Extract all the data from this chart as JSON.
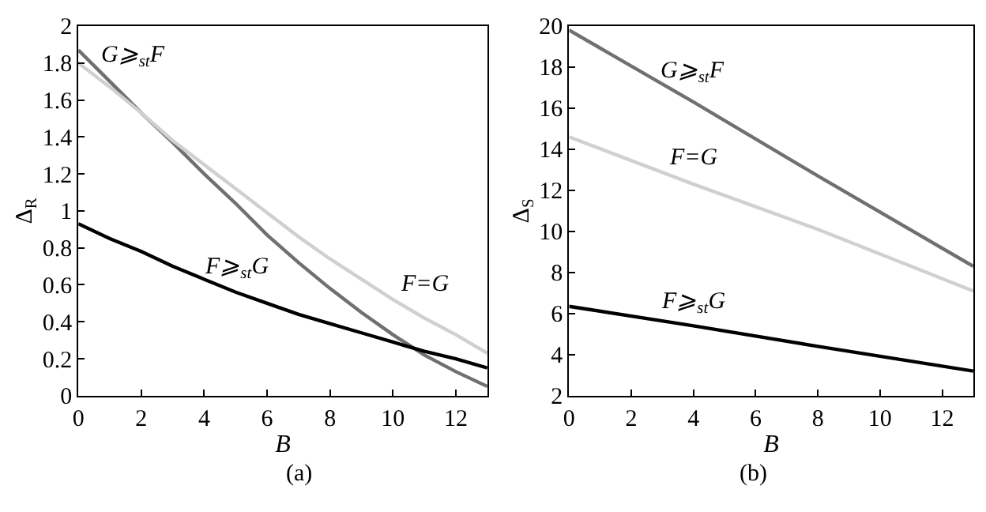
{
  "chart_data": [
    {
      "type": "line",
      "xlabel": "B",
      "ylabel": "Δ$_{R}$",
      "annotations": [
        "(a)"
      ],
      "xlim": [
        0,
        13
      ],
      "xticks": [
        0,
        2,
        4,
        6,
        8,
        10,
        12
      ],
      "ylim": [
        0,
        2
      ],
      "yticks": [
        0,
        0.2,
        0.4,
        0.6,
        0.8,
        1,
        1.2,
        1.4,
        1.6,
        1.8,
        2
      ],
      "legend": false,
      "marker": "none",
      "line_style": "solid",
      "series": [
        {
          "name": "G⩾$_{st}$F",
          "color": "#707070",
          "x": [
            0,
            1,
            2,
            3,
            4,
            5,
            6,
            7,
            8,
            9,
            10,
            11,
            12,
            13
          ],
          "values": [
            1.87,
            1.7,
            1.53,
            1.37,
            1.2,
            1.04,
            0.87,
            0.72,
            0.58,
            0.45,
            0.33,
            0.22,
            0.13,
            0.05
          ]
        },
        {
          "name": "F=G",
          "color": "#d0d0d0",
          "x": [
            0,
            1,
            2,
            3,
            4,
            5,
            6,
            7,
            8,
            9,
            10,
            11,
            12,
            13
          ],
          "values": [
            1.8,
            1.67,
            1.53,
            1.38,
            1.25,
            1.12,
            0.99,
            0.86,
            0.74,
            0.63,
            0.52,
            0.42,
            0.33,
            0.23
          ]
        },
        {
          "name": "F⩾$_{st}$G",
          "color": "#000000",
          "x": [
            0,
            1,
            2,
            3,
            4,
            5,
            6,
            7,
            8,
            9,
            10,
            11,
            12,
            13
          ],
          "values": [
            0.93,
            0.85,
            0.78,
            0.7,
            0.63,
            0.56,
            0.5,
            0.44,
            0.39,
            0.34,
            0.29,
            0.24,
            0.2,
            0.15
          ]
        }
      ]
    },
    {
      "type": "line",
      "xlabel": "B",
      "ylabel": "Δ$_{S}$",
      "annotations": [
        "(b)"
      ],
      "xlim": [
        0,
        13
      ],
      "xticks": [
        0,
        2,
        4,
        6,
        8,
        10,
        12
      ],
      "ylim": [
        2,
        20
      ],
      "yticks": [
        2,
        4,
        6,
        8,
        10,
        12,
        14,
        16,
        18,
        20
      ],
      "legend": false,
      "marker": "none",
      "line_style": "solid",
      "series": [
        {
          "name": "G⩾$_{st}$F",
          "color": "#707070",
          "x": [
            0,
            4,
            8,
            13
          ],
          "values": [
            19.8,
            16.3,
            12.7,
            8.3
          ]
        },
        {
          "name": "F=G",
          "color": "#d0d0d0",
          "x": [
            0,
            4,
            8,
            13
          ],
          "values": [
            14.6,
            12.3,
            10.1,
            7.1
          ]
        },
        {
          "name": "F⩾$_{st}$G",
          "color": "#000000",
          "x": [
            0,
            4,
            8,
            13
          ],
          "values": [
            6.35,
            5.4,
            4.4,
            3.2
          ]
        }
      ]
    }
  ]
}
